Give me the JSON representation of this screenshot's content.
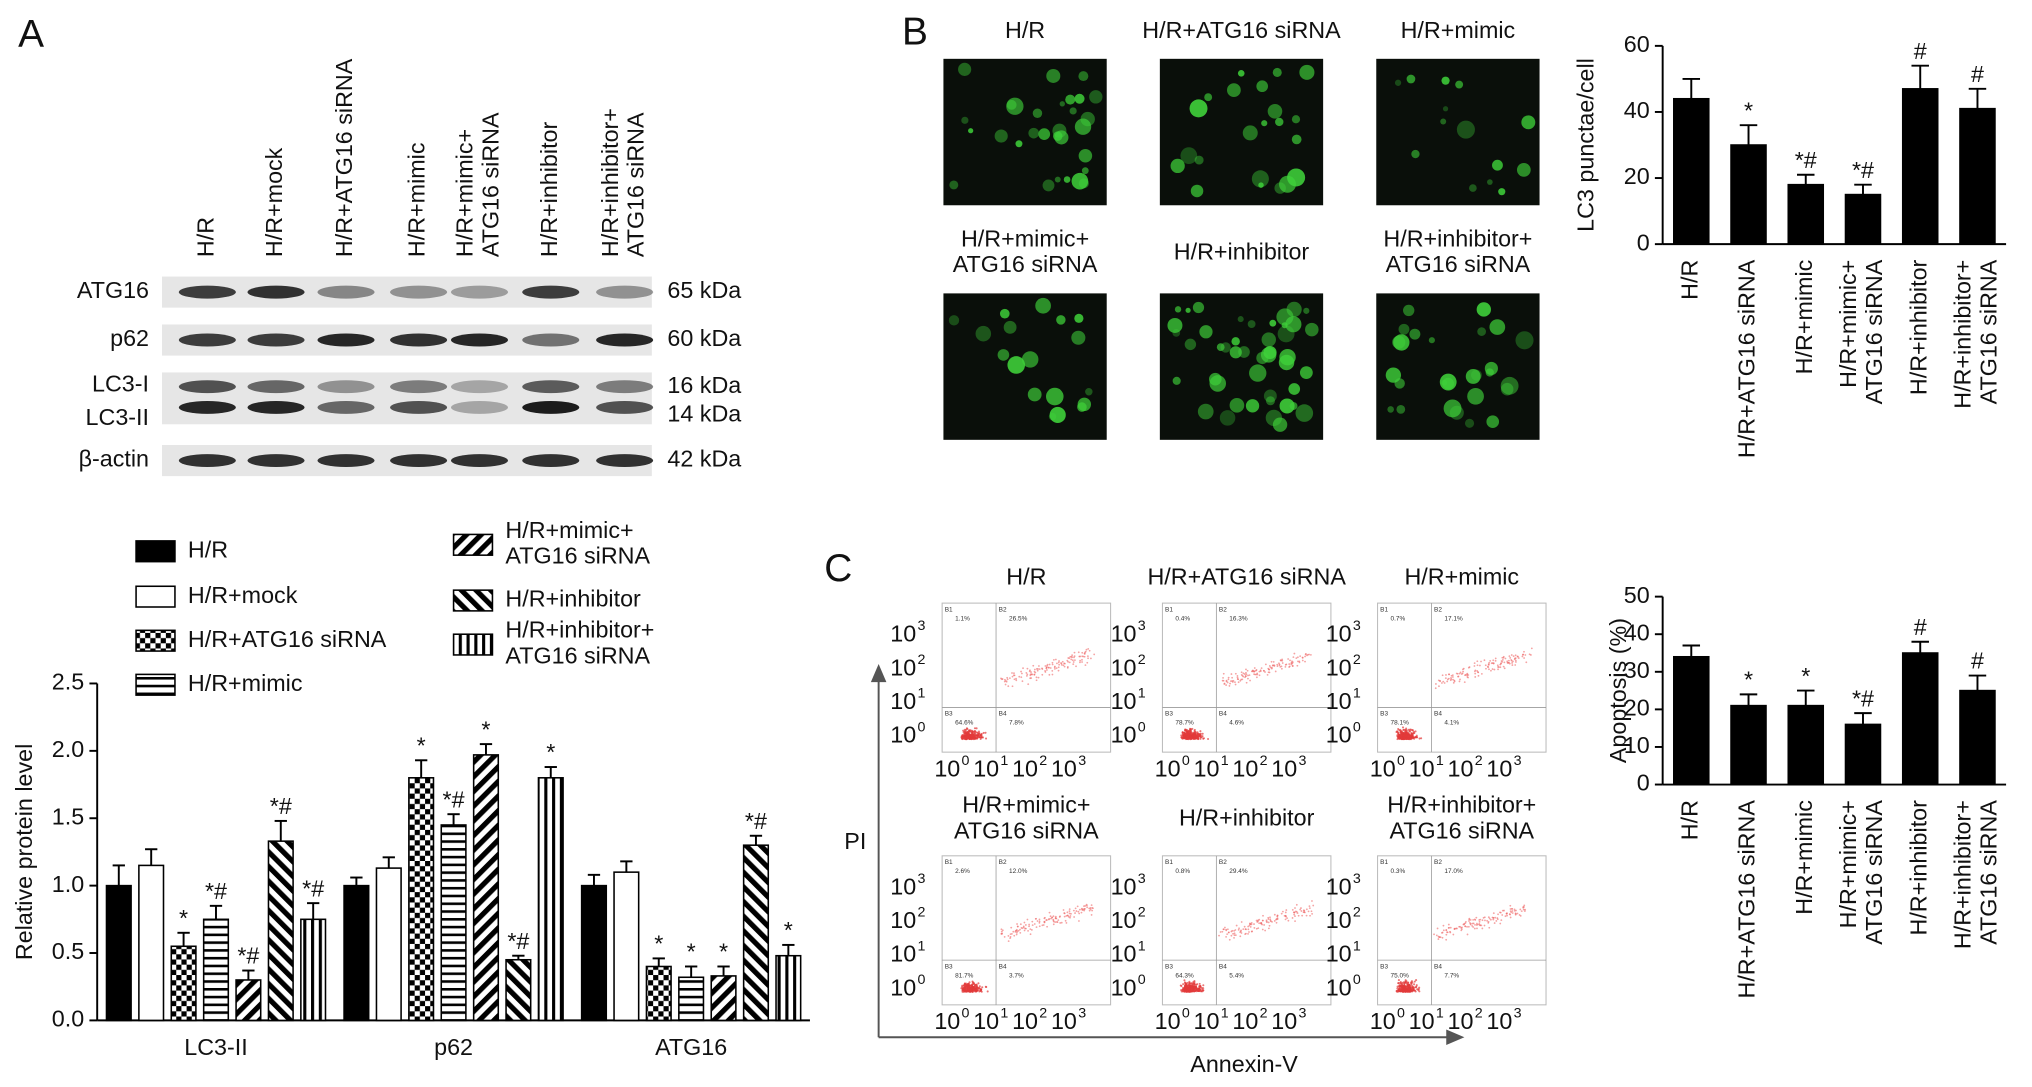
{
  "panel_labels": [
    "A",
    "B",
    "C"
  ],
  "blot": {
    "lanes": [
      "H/R",
      "H/R+mock",
      "H/R+ATG16 siRNA",
      "H/R+mimic",
      "H/R+mimic+\nATG16 siRNA",
      "H/R+inhibitor",
      "H/R+inhibitor+\nATG16 siRNA"
    ],
    "bands": [
      {
        "name": "ATG16",
        "size": "65 kDa"
      },
      {
        "name": "p62",
        "size": "60 kDa"
      },
      {
        "name": "LC3-I",
        "size": "16 kDa"
      },
      {
        "name": "LC3-II",
        "size": "14 kDa"
      },
      {
        "name": "β-actin",
        "size": "42 kDa"
      }
    ]
  },
  "micrographs": {
    "labels": [
      "H/R",
      "H/R+ATG16 siRNA",
      "H/R+mimic",
      "H/R+mimic+\nATG16 siRNA",
      "H/R+inhibitor",
      "H/R+inhibitor+\nATG16 siRNA"
    ]
  },
  "flow": {
    "x_label": "Annexin-V",
    "y_label": "PI",
    "tick_base": "10",
    "tick_exponents": [
      0,
      1,
      2,
      3
    ],
    "quadrant_names": [
      "B1",
      "B2",
      "B3",
      "B4"
    ],
    "plots": [
      {
        "title": "H/R",
        "quadrants": [
          "1.1%",
          "26.5%",
          "64.6%",
          "7.8%"
        ]
      },
      {
        "title": "H/R+ATG16 siRNA",
        "quadrants": [
          "0.4%",
          "16.3%",
          "78.7%",
          "4.6%"
        ]
      },
      {
        "title": "H/R+mimic",
        "quadrants": [
          "0.7%",
          "17.1%",
          "78.1%",
          "4.1%"
        ]
      },
      {
        "title": "H/R+mimic+\nATG16 siRNA",
        "quadrants": [
          "2.6%",
          "12.0%",
          "81.7%",
          "3.7%"
        ]
      },
      {
        "title": "H/R+inhibitor",
        "quadrants": [
          "0.8%",
          "29.4%",
          "64.3%",
          "5.4%"
        ]
      },
      {
        "title": "H/R+inhibitor+\nATG16 siRNA",
        "quadrants": [
          "0.3%",
          "17.0%",
          "75.0%",
          "7.7%"
        ]
      }
    ]
  },
  "chart_data": [
    {
      "type": "grouped_bar",
      "y_label": "Relative protein level",
      "categories": [
        "LC3-II",
        "p62",
        "ATG16"
      ],
      "ylim": [
        0,
        2.5
      ],
      "yticks": [
        {
          "value": 0,
          "label": "0.0"
        },
        0.5,
        {
          "value": 1,
          "label": "1.0"
        },
        1.5,
        {
          "value": 2,
          "label": "2.0"
        },
        2.5
      ],
      "series": [
        {
          "name": "H/R",
          "pattern": "solid",
          "color": "#000000",
          "values": [
            1.0,
            1.0,
            1.0
          ],
          "errors": [
            0.15,
            0.06,
            0.08
          ],
          "annotations": [
            null,
            null,
            null
          ]
        },
        {
          "name": "H/R+mock",
          "pattern": "white",
          "color": "#000000",
          "values": [
            1.15,
            1.13,
            1.1
          ],
          "errors": [
            0.12,
            0.08,
            0.08
          ],
          "annotations": [
            null,
            null,
            null
          ]
        },
        {
          "name": "H/R+ATG16 siRNA",
          "pattern": "checker",
          "color": "#000000",
          "values": [
            0.55,
            1.8,
            0.4
          ],
          "errors": [
            0.1,
            0.13,
            0.06
          ],
          "annotations": [
            "*",
            "*",
            "*"
          ]
        },
        {
          "name": "H/R+mimic",
          "pattern": "hlines",
          "color": "#000000",
          "values": [
            0.75,
            1.45,
            0.32
          ],
          "errors": [
            0.1,
            0.08,
            0.08
          ],
          "annotations": [
            "*#",
            "*#",
            "*"
          ]
        },
        {
          "name": "H/R+mimic+\nATG16 siRNA",
          "pattern": "backslash",
          "color": "#000000",
          "values": [
            0.3,
            1.97,
            0.33
          ],
          "errors": [
            0.07,
            0.08,
            0.07
          ],
          "annotations": [
            "*#",
            "*",
            "*"
          ]
        },
        {
          "name": "H/R+inhibitor",
          "pattern": "slash",
          "color": "#000000",
          "values": [
            1.33,
            0.45,
            1.3
          ],
          "errors": [
            0.15,
            0.03,
            0.07
          ],
          "annotations": [
            "*#",
            "*#",
            "*#"
          ]
        },
        {
          "name": "H/R+inhibitor+\nATG16 siRNA",
          "pattern": "vlines",
          "color": "#000000",
          "values": [
            0.75,
            1.8,
            0.48
          ],
          "errors": [
            0.12,
            0.08,
            0.08
          ],
          "annotations": [
            "*#",
            "*",
            "*"
          ]
        }
      ]
    },
    {
      "type": "bar",
      "y_label": "LC3 punctae/cell",
      "color": "#000000",
      "categories": [
        "H/R",
        "H/R+ATG16 siRNA",
        "H/R+mimic",
        "H/R+mimic+\nATG16 siRNA",
        "H/R+inhibitor",
        "H/R+inhibitor+\nATG16 siRNA"
      ],
      "values": [
        44,
        30,
        18,
        15,
        47,
        41
      ],
      "errors": [
        6,
        6,
        3,
        3,
        7,
        6
      ],
      "annotations": [
        null,
        "*",
        "*#",
        "*#",
        "#",
        "#"
      ],
      "ylim": [
        0,
        60
      ],
      "yticks": [
        0,
        20,
        40,
        60
      ]
    },
    {
      "type": "bar",
      "y_label": "Apoptosis (%)",
      "color": "#000000",
      "categories": [
        "H/R",
        "H/R+ATG16 siRNA",
        "H/R+mimic",
        "H/R+mimic+\nATG16 siRNA",
        "H/R+inhibitor",
        "H/R+inhibitor+\nATG16 siRNA"
      ],
      "values": [
        34,
        21,
        21,
        16,
        35,
        25
      ],
      "errors": [
        3,
        3,
        4,
        3,
        3,
        4
      ],
      "annotations": [
        null,
        "*",
        "*",
        "*#",
        "#",
        "#"
      ],
      "ylim": [
        0,
        50
      ],
      "yticks": [
        0,
        10,
        20,
        30,
        40,
        50
      ]
    }
  ]
}
